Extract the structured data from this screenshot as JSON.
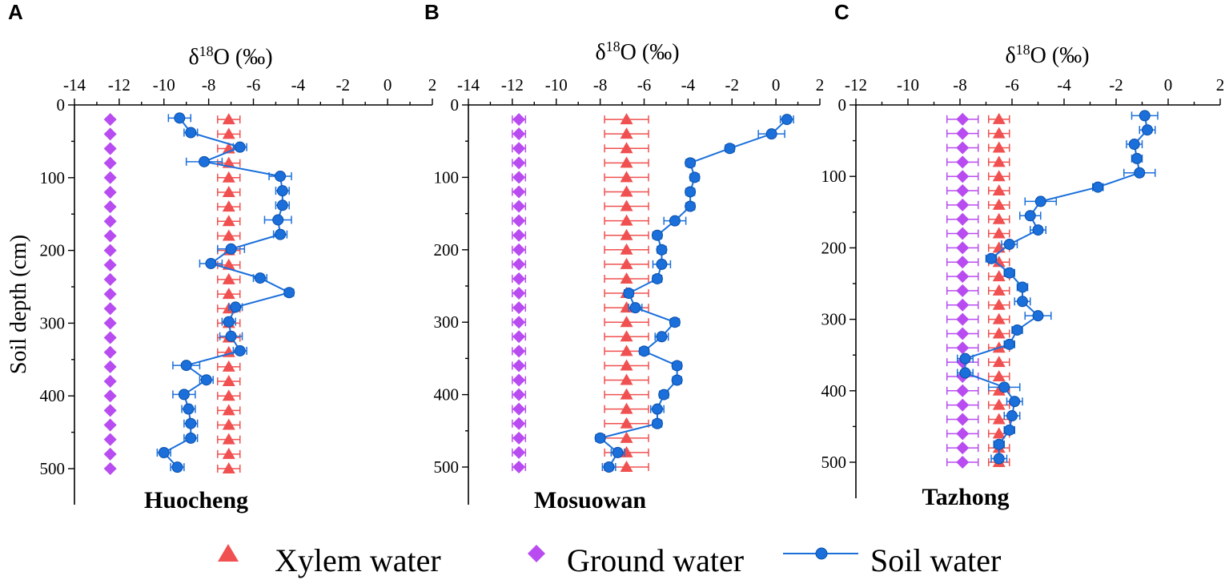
{
  "figure": {
    "shared_axis_title_base": "δ",
    "shared_axis_title_sup": "18",
    "shared_axis_title_rest": "O (‰)",
    "y_axis_title": "Soil depth (cm)"
  },
  "legend": {
    "xylem_label": "Xylem water",
    "ground_label": "Ground water",
    "soil_label": "Soil water"
  },
  "colors": {
    "xylem": "#f05050",
    "ground": "#b84cf0",
    "soil": "#1a6fdb"
  },
  "chart_data": [
    {
      "type": "scatter",
      "panel": "A",
      "site": "Huocheng",
      "xlabel": "δ18O (‰)",
      "ylabel": "Soil depth (cm)",
      "xlim": [
        -14,
        2
      ],
      "xticks": [
        -14,
        -12,
        -10,
        -8,
        -6,
        -4,
        -2,
        0,
        2
      ],
      "ylim": [
        0,
        550
      ],
      "yticks": [
        0,
        100,
        200,
        300,
        400,
        500
      ],
      "series": [
        {
          "name": "Xylem water",
          "values": [
            [
              -7.1,
              20
            ],
            [
              -7.1,
              40
            ],
            [
              -7.1,
              60
            ],
            [
              -7.1,
              80
            ],
            [
              -7.1,
              100
            ],
            [
              -7.1,
              120
            ],
            [
              -7.1,
              140
            ],
            [
              -7.1,
              160
            ],
            [
              -7.1,
              180
            ],
            [
              -7.1,
              200
            ],
            [
              -7.1,
              220
            ],
            [
              -7.1,
              240
            ],
            [
              -7.1,
              260
            ],
            [
              -7.1,
              280
            ],
            [
              -7.1,
              300
            ],
            [
              -7.1,
              320
            ],
            [
              -7.1,
              340
            ],
            [
              -7.1,
              360
            ],
            [
              -7.1,
              380
            ],
            [
              -7.1,
              400
            ],
            [
              -7.1,
              420
            ],
            [
              -7.1,
              440
            ],
            [
              -7.1,
              460
            ],
            [
              -7.1,
              480
            ],
            [
              -7.1,
              500
            ]
          ],
          "error": 0.5
        },
        {
          "name": "Ground water",
          "values": [
            [
              -12.4,
              20
            ],
            [
              -12.4,
              40
            ],
            [
              -12.4,
              60
            ],
            [
              -12.4,
              80
            ],
            [
              -12.4,
              100
            ],
            [
              -12.4,
              120
            ],
            [
              -12.4,
              140
            ],
            [
              -12.4,
              160
            ],
            [
              -12.4,
              180
            ],
            [
              -12.4,
              200
            ],
            [
              -12.4,
              220
            ],
            [
              -12.4,
              240
            ],
            [
              -12.4,
              260
            ],
            [
              -12.4,
              280
            ],
            [
              -12.4,
              300
            ],
            [
              -12.4,
              320
            ],
            [
              -12.4,
              340
            ],
            [
              -12.4,
              360
            ],
            [
              -12.4,
              380
            ],
            [
              -12.4,
              400
            ],
            [
              -12.4,
              420
            ],
            [
              -12.4,
              440
            ],
            [
              -12.4,
              460
            ],
            [
              -12.4,
              480
            ],
            [
              -12.4,
              500
            ]
          ],
          "error": 0
        },
        {
          "name": "Soil water",
          "values": [
            [
              -9.3,
              18
            ],
            [
              -8.8,
              38
            ],
            [
              -6.6,
              58
            ],
            [
              -8.2,
              78
            ],
            [
              -4.8,
              98
            ],
            [
              -4.7,
              118
            ],
            [
              -4.7,
              138
            ],
            [
              -4.9,
              158
            ],
            [
              -4.8,
              178
            ],
            [
              -7.0,
              198
            ],
            [
              -7.9,
              218
            ],
            [
              -5.7,
              238
            ],
            [
              -4.4,
              258
            ],
            [
              -6.8,
              278
            ],
            [
              -7.1,
              298
            ],
            [
              -7.0,
              318
            ],
            [
              -6.6,
              338
            ],
            [
              -9.0,
              358
            ],
            [
              -8.1,
              378
            ],
            [
              -9.1,
              398
            ],
            [
              -8.9,
              418
            ],
            [
              -8.8,
              438
            ],
            [
              -8.8,
              458
            ],
            [
              -10.0,
              478
            ],
            [
              -9.4,
              498
            ]
          ],
          "errors": [
            0.5,
            0.3,
            0.3,
            0.8,
            0.5,
            0.3,
            0.3,
            0.6,
            0.3,
            0.6,
            0.5,
            0.3,
            0.2,
            0.3,
            0.3,
            0.5,
            0.3,
            0.6,
            0.3,
            0.5,
            0.3,
            0.3,
            0.3,
            0.3,
            0.3
          ]
        }
      ]
    },
    {
      "type": "scatter",
      "panel": "B",
      "site": "Mosuowan",
      "xlabel": "δ18O (‰)",
      "ylabel": "Soil depth (cm)",
      "xlim": [
        -14,
        2
      ],
      "xticks": [
        -14,
        -12,
        -10,
        -8,
        -6,
        -4,
        -2,
        0,
        2
      ],
      "ylim": [
        0,
        550
      ],
      "yticks": [
        0,
        100,
        200,
        300,
        400,
        500
      ],
      "series": [
        {
          "name": "Xylem water",
          "values": [
            [
              -6.8,
              20
            ],
            [
              -6.8,
              40
            ],
            [
              -6.8,
              60
            ],
            [
              -6.8,
              80
            ],
            [
              -6.8,
              100
            ],
            [
              -6.8,
              120
            ],
            [
              -6.8,
              140
            ],
            [
              -6.8,
              160
            ],
            [
              -6.8,
              180
            ],
            [
              -6.8,
              200
            ],
            [
              -6.8,
              220
            ],
            [
              -6.8,
              240
            ],
            [
              -6.8,
              260
            ],
            [
              -6.8,
              280
            ],
            [
              -6.8,
              300
            ],
            [
              -6.8,
              320
            ],
            [
              -6.8,
              340
            ],
            [
              -6.8,
              360
            ],
            [
              -6.8,
              380
            ],
            [
              -6.8,
              400
            ],
            [
              -6.8,
              420
            ],
            [
              -6.8,
              440
            ],
            [
              -6.8,
              460
            ],
            [
              -6.8,
              480
            ],
            [
              -6.8,
              500
            ]
          ],
          "error": 1.0
        },
        {
          "name": "Ground water",
          "values": [
            [
              -11.7,
              20
            ],
            [
              -11.7,
              40
            ],
            [
              -11.7,
              60
            ],
            [
              -11.7,
              80
            ],
            [
              -11.7,
              100
            ],
            [
              -11.7,
              120
            ],
            [
              -11.7,
              140
            ],
            [
              -11.7,
              160
            ],
            [
              -11.7,
              180
            ],
            [
              -11.7,
              200
            ],
            [
              -11.7,
              220
            ],
            [
              -11.7,
              240
            ],
            [
              -11.7,
              260
            ],
            [
              -11.7,
              280
            ],
            [
              -11.7,
              300
            ],
            [
              -11.7,
              320
            ],
            [
              -11.7,
              340
            ],
            [
              -11.7,
              360
            ],
            [
              -11.7,
              380
            ],
            [
              -11.7,
              400
            ],
            [
              -11.7,
              420
            ],
            [
              -11.7,
              440
            ],
            [
              -11.7,
              460
            ],
            [
              -11.7,
              480
            ],
            [
              -11.7,
              500
            ]
          ],
          "error": 0.3
        },
        {
          "name": "Soil water",
          "values": [
            [
              0.5,
              20
            ],
            [
              -0.2,
              40
            ],
            [
              -2.1,
              60
            ],
            [
              -3.9,
              80
            ],
            [
              -3.7,
              100
            ],
            [
              -3.9,
              120
            ],
            [
              -3.9,
              140
            ],
            [
              -4.6,
              160
            ],
            [
              -5.4,
              180
            ],
            [
              -5.2,
              200
            ],
            [
              -5.2,
              220
            ],
            [
              -5.4,
              240
            ],
            [
              -6.7,
              260
            ],
            [
              -6.4,
              280
            ],
            [
              -4.6,
              300
            ],
            [
              -5.2,
              320
            ],
            [
              -6.0,
              340
            ],
            [
              -4.5,
              360
            ],
            [
              -4.5,
              380
            ],
            [
              -5.1,
              400
            ],
            [
              -5.4,
              420
            ],
            [
              -5.4,
              440
            ],
            [
              -8.0,
              460
            ],
            [
              -7.2,
              480
            ],
            [
              -7.6,
              500
            ]
          ],
          "errors": [
            0.3,
            0.6,
            0.2,
            0.2,
            0.2,
            0.2,
            0.2,
            0.5,
            0.2,
            0.2,
            0.4,
            0.2,
            0.2,
            0.3,
            0.2,
            0.3,
            0.2,
            0.2,
            0.2,
            0.2,
            0.3,
            0.2,
            0.2,
            0.3,
            0.3
          ]
        }
      ]
    },
    {
      "type": "scatter",
      "panel": "C",
      "site": "Tazhong",
      "xlabel": "δ18O (‰)",
      "ylabel": "Soil depth (cm)",
      "xlim": [
        -12,
        2
      ],
      "xticks": [
        -12,
        -10,
        -8,
        -6,
        -4,
        -2,
        0,
        2
      ],
      "ylim": [
        0,
        550
      ],
      "yticks": [
        0,
        100,
        200,
        300,
        400,
        500
      ],
      "series": [
        {
          "name": "Xylem water",
          "values": [
            [
              -6.5,
              20
            ],
            [
              -6.5,
              40
            ],
            [
              -6.5,
              60
            ],
            [
              -6.5,
              80
            ],
            [
              -6.5,
              100
            ],
            [
              -6.5,
              120
            ],
            [
              -6.5,
              140
            ],
            [
              -6.5,
              160
            ],
            [
              -6.5,
              180
            ],
            [
              -6.5,
              200
            ],
            [
              -6.5,
              220
            ],
            [
              -6.5,
              240
            ],
            [
              -6.5,
              260
            ],
            [
              -6.5,
              280
            ],
            [
              -6.5,
              300
            ],
            [
              -6.5,
              320
            ],
            [
              -6.5,
              340
            ],
            [
              -6.5,
              360
            ],
            [
              -6.5,
              380
            ],
            [
              -6.5,
              400
            ],
            [
              -6.5,
              420
            ],
            [
              -6.5,
              440
            ],
            [
              -6.5,
              460
            ],
            [
              -6.5,
              480
            ],
            [
              -6.5,
              500
            ]
          ],
          "error": 0.4
        },
        {
          "name": "Ground water",
          "values": [
            [
              -7.9,
              20
            ],
            [
              -7.9,
              40
            ],
            [
              -7.9,
              60
            ],
            [
              -7.9,
              80
            ],
            [
              -7.9,
              100
            ],
            [
              -7.9,
              120
            ],
            [
              -7.9,
              140
            ],
            [
              -7.9,
              160
            ],
            [
              -7.9,
              180
            ],
            [
              -7.9,
              200
            ],
            [
              -7.9,
              220
            ],
            [
              -7.9,
              240
            ],
            [
              -7.9,
              260
            ],
            [
              -7.9,
              280
            ],
            [
              -7.9,
              300
            ],
            [
              -7.9,
              320
            ],
            [
              -7.9,
              340
            ],
            [
              -7.9,
              360
            ],
            [
              -7.9,
              380
            ],
            [
              -7.9,
              400
            ],
            [
              -7.9,
              420
            ],
            [
              -7.9,
              440
            ],
            [
              -7.9,
              460
            ],
            [
              -7.9,
              480
            ],
            [
              -7.9,
              500
            ]
          ],
          "error": 0.6
        },
        {
          "name": "Soil water",
          "values": [
            [
              -0.9,
              15
            ],
            [
              -0.8,
              35
            ],
            [
              -1.3,
              55
            ],
            [
              -1.2,
              75
            ],
            [
              -1.1,
              95
            ],
            [
              -2.7,
              115
            ],
            [
              -4.9,
              135
            ],
            [
              -5.3,
              155
            ],
            [
              -5.0,
              175
            ],
            [
              -6.1,
              195
            ],
            [
              -6.8,
              215
            ],
            [
              -6.1,
              235
            ],
            [
              -5.6,
              255
            ],
            [
              -5.6,
              275
            ],
            [
              -5.0,
              295
            ],
            [
              -5.8,
              315
            ],
            [
              -6.1,
              335
            ],
            [
              -7.8,
              355
            ],
            [
              -7.8,
              375
            ],
            [
              -6.3,
              395
            ],
            [
              -5.9,
              415
            ],
            [
              -6.0,
              435
            ],
            [
              -6.1,
              455
            ],
            [
              -6.5,
              475
            ],
            [
              -6.5,
              495
            ]
          ],
          "errors": [
            0.5,
            0.3,
            0.3,
            0.2,
            0.6,
            0.2,
            0.6,
            0.4,
            0.3,
            0.3,
            0.2,
            0.2,
            0.2,
            0.3,
            0.5,
            0.2,
            0.2,
            0.3,
            0.3,
            0.6,
            0.3,
            0.3,
            0.2,
            0.2,
            0.3
          ]
        }
      ]
    }
  ]
}
